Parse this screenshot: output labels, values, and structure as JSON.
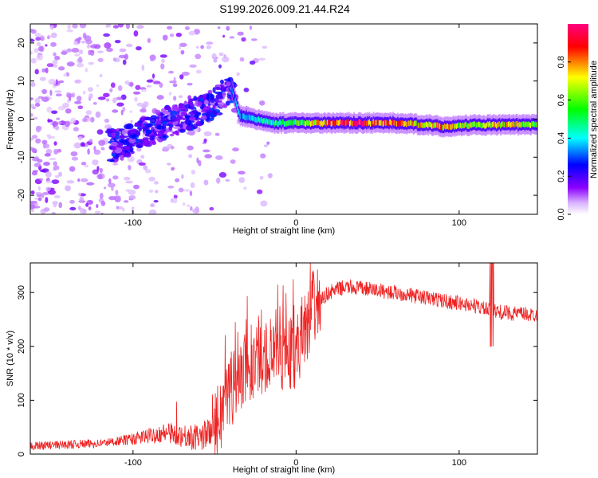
{
  "title": "S199.2026.009.21.44.R24",
  "chart_data": [
    {
      "type": "heatmap",
      "name": "spectrogram",
      "xlabel": "Height of straight line (km)",
      "ylabel": "Frequency (Hz)",
      "xlim": [
        -163,
        148
      ],
      "ylim": [
        -25,
        25
      ],
      "xticks": [
        -100,
        0,
        100
      ],
      "yticks": [
        -20,
        -10,
        0,
        10,
        20
      ],
      "colorbar": {
        "label": "Normalized spectral amplitude",
        "range": [
          0,
          1
        ],
        "ticks": [
          "0.0",
          "0.2",
          "0.4",
          "0.6",
          "0.8"
        ],
        "colors": [
          "#ffffff",
          "#8b00ff",
          "#0000ff",
          "#00ffff",
          "#00ff00",
          "#ffff00",
          "#ff0000",
          "#ff0080"
        ]
      },
      "ridge": [
        {
          "x": -110,
          "freq": -7,
          "amp": 0.35
        },
        {
          "x": -95,
          "freq": -4,
          "amp": 0.4
        },
        {
          "x": -80,
          "freq": -1,
          "amp": 0.35
        },
        {
          "x": -65,
          "freq": 1,
          "amp": 0.4
        },
        {
          "x": -50,
          "freq": 4,
          "amp": 0.4
        },
        {
          "x": -40,
          "freq": 8,
          "amp": 0.3
        },
        {
          "x": -35,
          "freq": 1,
          "amp": 0.35
        },
        {
          "x": -25,
          "freq": 0,
          "amp": 0.4
        },
        {
          "x": -15,
          "freq": -1,
          "amp": 0.45
        },
        {
          "x": 0,
          "freq": -1,
          "amp": 0.55
        },
        {
          "x": 20,
          "freq": -1,
          "amp": 0.85
        },
        {
          "x": 40,
          "freq": -1,
          "amp": 0.9
        },
        {
          "x": 60,
          "freq": -1,
          "amp": 0.8
        },
        {
          "x": 80,
          "freq": -1.5,
          "amp": 0.7
        },
        {
          "x": 90,
          "freq": -2,
          "amp": 0.75
        },
        {
          "x": 110,
          "freq": -1.5,
          "amp": 0.6
        },
        {
          "x": 130,
          "freq": -1.5,
          "amp": 0.75
        },
        {
          "x": 148,
          "freq": -1.5,
          "amp": 0.55
        }
      ]
    },
    {
      "type": "line",
      "name": "snr",
      "xlabel": "Height of straight line (km)",
      "ylabel": "SNR (10 * v/v)",
      "xlim": [
        -163,
        148
      ],
      "ylim": [
        0,
        355
      ],
      "xticks": [
        -100,
        0,
        100
      ],
      "yticks": [
        0,
        100,
        200,
        300
      ],
      "color": "#ee2222",
      "trend": {
        "x": [
          -163,
          -120,
          -100,
          -80,
          -60,
          -50,
          -40,
          -30,
          -20,
          -10,
          0,
          10,
          20,
          30,
          40,
          60,
          80,
          100,
          110,
          120,
          130,
          148
        ],
        "y": [
          15,
          20,
          28,
          40,
          30,
          45,
          120,
          160,
          180,
          185,
          190,
          270,
          300,
          310,
          308,
          300,
          290,
          280,
          275,
          265,
          262,
          258
        ]
      }
    }
  ]
}
